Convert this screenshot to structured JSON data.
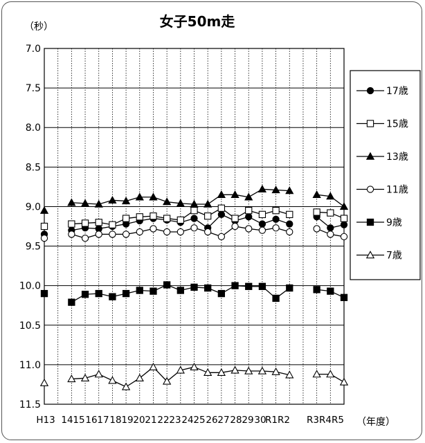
{
  "chart_data": {
    "type": "line",
    "title": "女子50m走",
    "ylabel_unit": "（秒）",
    "xlabel_unit": "（年度）",
    "y_axis": {
      "min": 7.0,
      "max": 11.5,
      "step": 0.5,
      "reversed": true,
      "tick_labels": [
        "7.0",
        "7.5",
        "8.0",
        "8.5",
        "9.0",
        "9.5",
        "10.0",
        "10.5",
        "11.0",
        "11.5"
      ]
    },
    "categories": [
      "H13",
      "14",
      "15",
      "16",
      "17",
      "18",
      "19",
      "20",
      "21",
      "22",
      "23",
      "24",
      "25",
      "26",
      "27",
      "28",
      "29",
      "30",
      "R1",
      "R2",
      "R3",
      "R4",
      "R5"
    ],
    "grid": {
      "horizontal": "solid",
      "vertical": "dotted"
    },
    "legend_position": "right",
    "series": [
      {
        "name": "17歳",
        "marker": "filled-circle",
        "values": [
          9.35,
          null,
          9.3,
          9.27,
          9.28,
          9.25,
          9.22,
          9.18,
          9.15,
          9.17,
          9.2,
          9.15,
          9.27,
          9.1,
          9.18,
          9.13,
          9.22,
          9.16,
          9.22,
          null,
          9.13,
          9.27,
          9.23
        ]
      },
      {
        "name": "15歳",
        "marker": "open-square",
        "values": [
          9.25,
          null,
          9.22,
          9.21,
          9.2,
          9.23,
          9.15,
          9.13,
          9.12,
          9.15,
          9.17,
          9.05,
          9.12,
          9.02,
          9.15,
          9.05,
          9.1,
          9.05,
          9.1,
          null,
          9.07,
          9.08,
          9.15
        ]
      },
      {
        "name": "13歳",
        "marker": "filled-triangle",
        "values": [
          9.05,
          null,
          8.95,
          8.96,
          8.97,
          8.92,
          8.93,
          8.88,
          8.88,
          8.94,
          8.96,
          8.97,
          8.97,
          8.85,
          8.85,
          8.88,
          8.78,
          8.79,
          8.8,
          null,
          8.85,
          8.87,
          9.0
        ]
      },
      {
        "name": "11歳",
        "marker": "open-circle",
        "values": [
          9.4,
          null,
          9.35,
          9.4,
          9.35,
          9.35,
          9.35,
          9.32,
          9.28,
          9.32,
          9.32,
          9.27,
          9.32,
          9.38,
          9.25,
          9.28,
          9.3,
          9.27,
          9.32,
          null,
          9.28,
          9.35,
          9.38
        ]
      },
      {
        "name": "9歳",
        "marker": "filled-square",
        "values": [
          10.1,
          null,
          10.21,
          10.11,
          10.1,
          10.14,
          10.1,
          10.06,
          10.07,
          9.99,
          10.06,
          10.02,
          10.03,
          10.1,
          10.0,
          10.01,
          10.01,
          10.16,
          10.03,
          null,
          10.05,
          10.07,
          10.15
        ]
      },
      {
        "name": "7歳",
        "marker": "open-triangle",
        "values": [
          11.23,
          null,
          11.18,
          11.17,
          11.12,
          11.2,
          11.28,
          11.17,
          11.03,
          11.21,
          11.07,
          11.03,
          11.1,
          11.1,
          11.07,
          11.08,
          11.08,
          11.09,
          11.13,
          null,
          11.12,
          11.12,
          11.22
        ]
      }
    ],
    "colors": {
      "line": "#000000",
      "grid": "#000000",
      "frame": "#555555"
    }
  }
}
